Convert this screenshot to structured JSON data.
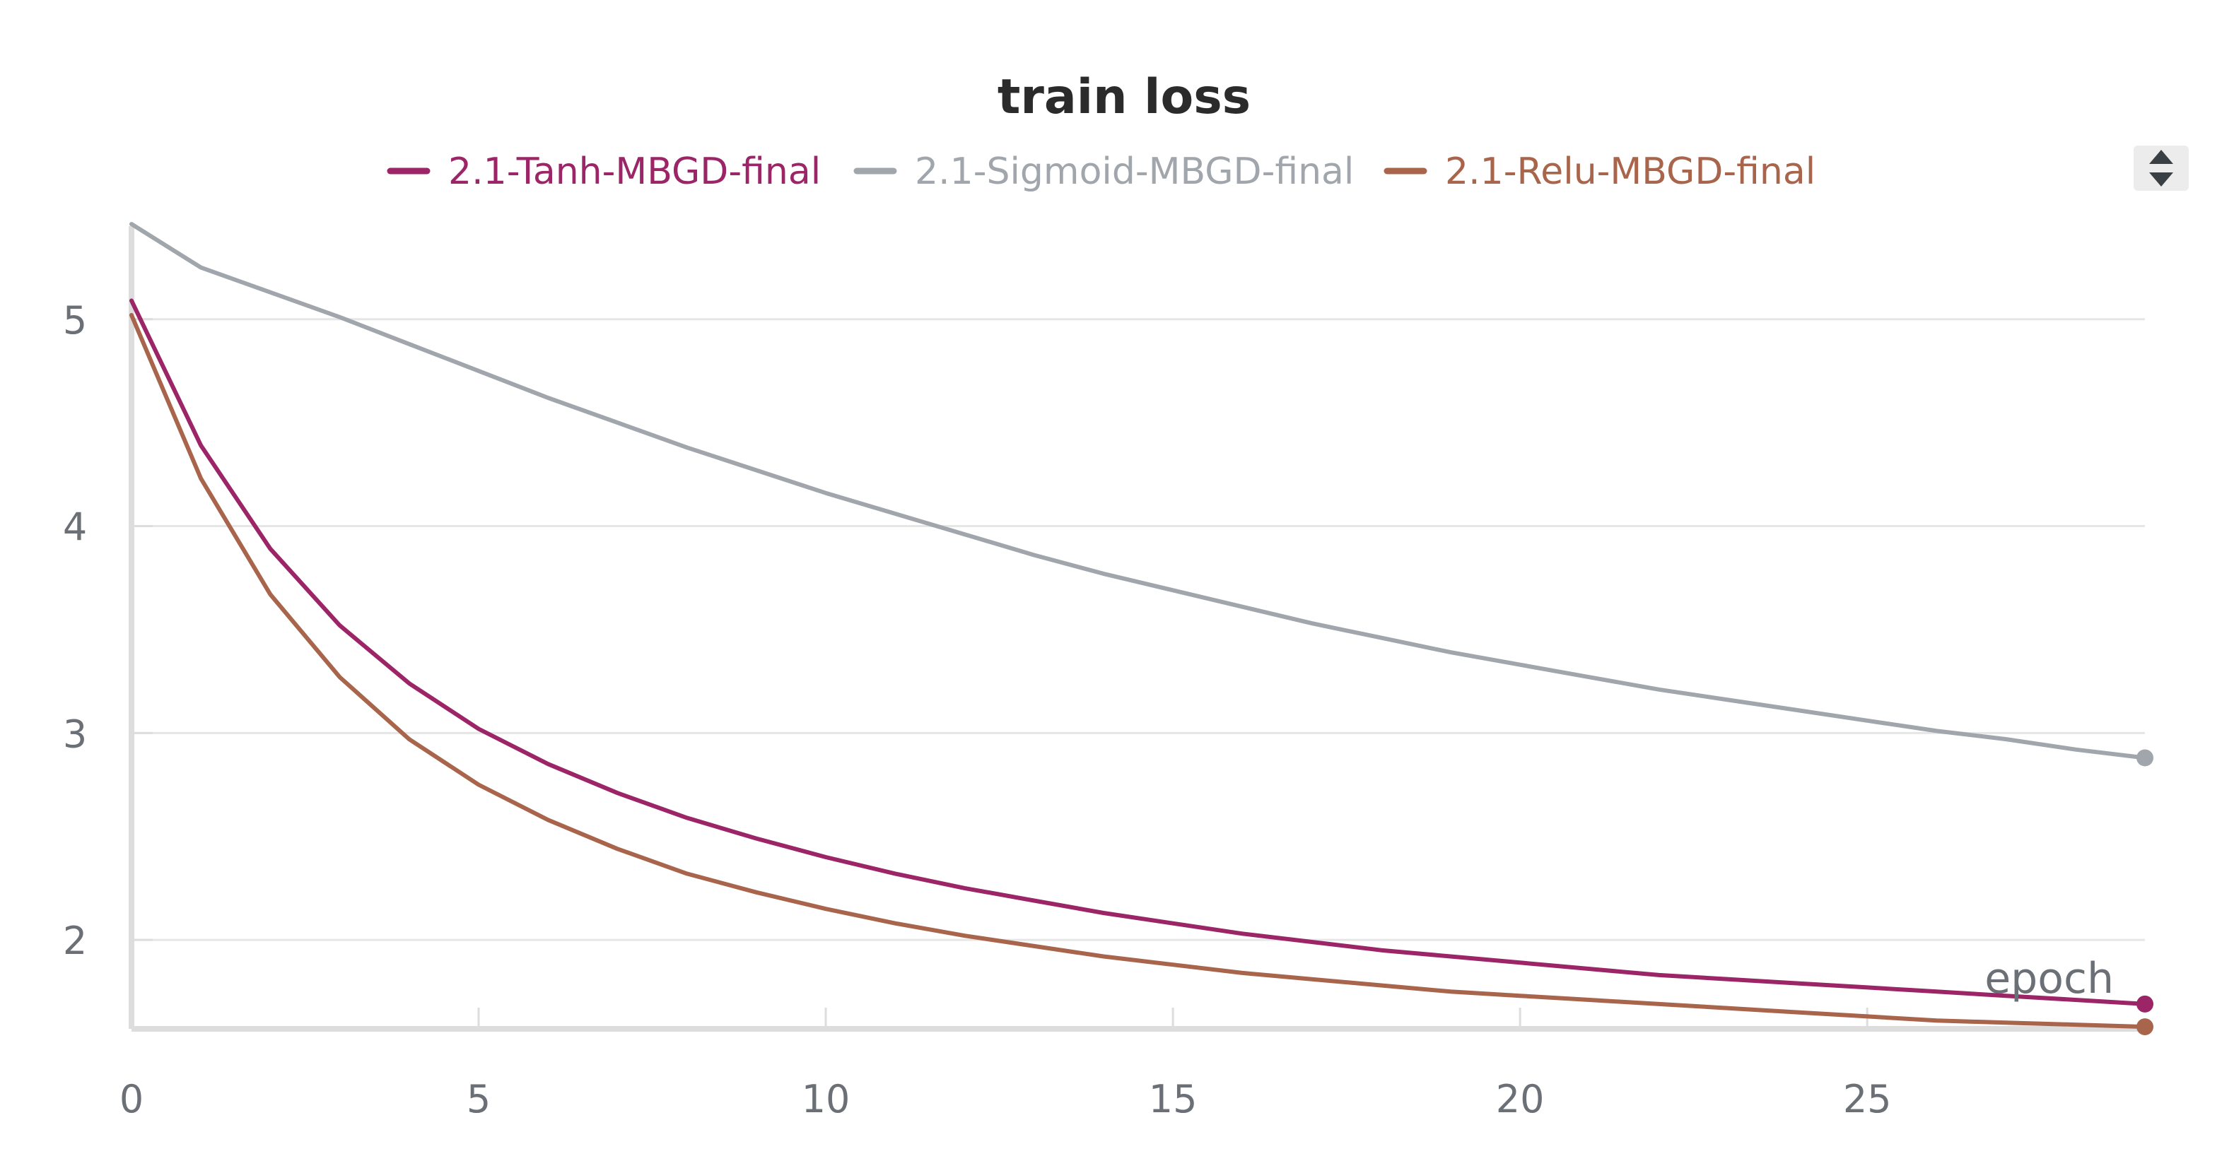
{
  "chart_data": {
    "type": "line",
    "title": "train loss",
    "xlabel": "epoch",
    "ylabel": "",
    "xlim": [
      0,
      29
    ],
    "ylim": [
      1.57,
      5.45
    ],
    "x_ticks": [
      0,
      5,
      10,
      15,
      20,
      25
    ],
    "y_ticks": [
      2,
      3,
      4,
      5
    ],
    "grid": true,
    "legend_placement": "top-center",
    "x": [
      0,
      1,
      2,
      3,
      4,
      5,
      6,
      7,
      8,
      9,
      10,
      11,
      12,
      13,
      14,
      15,
      16,
      17,
      18,
      19,
      20,
      21,
      22,
      23,
      24,
      25,
      26,
      27,
      28,
      29
    ],
    "series": [
      {
        "name": "2.1-Tanh-MBGD-final",
        "color": "#9b2566",
        "values": [
          5.09,
          4.39,
          3.89,
          3.52,
          3.24,
          3.02,
          2.85,
          2.71,
          2.59,
          2.49,
          2.4,
          2.32,
          2.25,
          2.19,
          2.13,
          2.08,
          2.03,
          1.99,
          1.95,
          1.92,
          1.89,
          1.86,
          1.83,
          1.81,
          1.79,
          1.77,
          1.75,
          1.73,
          1.71,
          1.69
        ]
      },
      {
        "name": "2.1-Sigmoid-MBGD-final",
        "color": "#a0a6ac",
        "values": [
          5.46,
          5.25,
          5.13,
          5.01,
          4.88,
          4.75,
          4.62,
          4.5,
          4.38,
          4.27,
          4.16,
          4.06,
          3.96,
          3.86,
          3.77,
          3.69,
          3.61,
          3.53,
          3.46,
          3.39,
          3.33,
          3.27,
          3.21,
          3.16,
          3.11,
          3.06,
          3.01,
          2.97,
          2.92,
          2.88
        ]
      },
      {
        "name": "2.1-Relu-MBGD-final",
        "color": "#a8654b",
        "values": [
          5.02,
          4.23,
          3.67,
          3.27,
          2.97,
          2.75,
          2.58,
          2.44,
          2.32,
          2.23,
          2.15,
          2.08,
          2.02,
          1.97,
          1.92,
          1.88,
          1.84,
          1.81,
          1.78,
          1.75,
          1.73,
          1.71,
          1.69,
          1.67,
          1.65,
          1.63,
          1.61,
          1.6,
          1.59,
          1.58
        ]
      }
    ]
  },
  "toolbar": {
    "icon": "expand-collapse-icon"
  }
}
